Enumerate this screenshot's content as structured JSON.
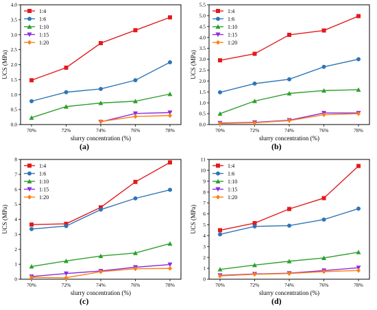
{
  "colors": {
    "1:4": "#e31a1c",
    "1:6": "#2e75b6",
    "1:10": "#2ca02c",
    "1:15": "#8b2be2",
    "1:20": "#ff7f0e"
  },
  "markers": {
    "1:4": "square",
    "1:6": "circle",
    "1:10": "triangle-up",
    "1:15": "triangle-down",
    "1:20": "diamond"
  },
  "chart_data": [
    {
      "panel_label": "(a)",
      "type": "line",
      "xlabel": "slurry concentration (%)",
      "ylabel": "UCS (MPa)",
      "categories": [
        "70%",
        "72%",
        "74%",
        "76%",
        "78%"
      ],
      "ylim": [
        0,
        4.0
      ],
      "yticks": [
        "0.0",
        "0.5",
        "1.0",
        "1.5",
        "2.0",
        "2.5",
        "3.0",
        "3.5",
        "4.0"
      ],
      "legend_position": "top-left",
      "series": [
        {
          "name": "1:4",
          "values": [
            1.48,
            1.9,
            2.72,
            3.15,
            3.58
          ]
        },
        {
          "name": "1:6",
          "values": [
            0.78,
            1.08,
            1.19,
            1.48,
            2.08
          ]
        },
        {
          "name": "1:10",
          "values": [
            0.23,
            0.6,
            0.72,
            0.78,
            1.02
          ]
        },
        {
          "name": "1:15",
          "values": [
            null,
            null,
            0.09,
            0.37,
            0.4
          ]
        },
        {
          "name": "1:20",
          "values": [
            null,
            null,
            0.1,
            0.27,
            0.3
          ]
        }
      ]
    },
    {
      "panel_label": "(b)",
      "type": "line",
      "xlabel": "slurry concentration (%)",
      "ylabel": "UCS (MPa)",
      "categories": [
        "70%",
        "72%",
        "74%",
        "76%",
        "78%"
      ],
      "ylim": [
        0,
        5.5
      ],
      "yticks": [
        "0.0",
        "0.5",
        "1.0",
        "1.5",
        "2.0",
        "2.5",
        "3.0",
        "3.5",
        "4.0",
        "4.5",
        "5.0",
        "5.5"
      ],
      "legend_position": "top-left",
      "series": [
        {
          "name": "1:4",
          "values": [
            2.95,
            3.25,
            4.12,
            4.32,
            4.98
          ]
        },
        {
          "name": "1:6",
          "values": [
            1.48,
            1.88,
            2.08,
            2.65,
            3.0
          ]
        },
        {
          "name": "1:10",
          "values": [
            0.5,
            1.08,
            1.43,
            1.56,
            1.6
          ]
        },
        {
          "name": "1:15",
          "values": [
            0.07,
            0.1,
            0.2,
            0.53,
            0.53
          ]
        },
        {
          "name": "1:20",
          "values": [
            0.05,
            0.08,
            0.18,
            0.45,
            0.5
          ]
        }
      ]
    },
    {
      "panel_label": "(c)",
      "type": "line",
      "xlabel": "slurry concentration (%)",
      "ylabel": "UCS (MPa)",
      "categories": [
        "70%",
        "72%",
        "74%",
        "76%",
        "78%"
      ],
      "ylim": [
        0,
        8
      ],
      "yticks": [
        "0",
        "1",
        "2",
        "3",
        "4",
        "5",
        "6",
        "7",
        "8"
      ],
      "legend_position": "top-left",
      "series": [
        {
          "name": "1:4",
          "values": [
            3.65,
            3.7,
            4.8,
            6.5,
            7.8
          ]
        },
        {
          "name": "1:6",
          "values": [
            3.35,
            3.55,
            4.65,
            5.4,
            5.97
          ]
        },
        {
          "name": "1:10",
          "values": [
            0.85,
            1.22,
            1.55,
            1.75,
            2.38
          ]
        },
        {
          "name": "1:15",
          "values": [
            0.18,
            0.38,
            0.55,
            0.8,
            0.98
          ]
        },
        {
          "name": "1:20",
          "values": [
            0.12,
            0.1,
            0.5,
            0.7,
            0.72
          ]
        }
      ]
    },
    {
      "panel_label": "(d)",
      "type": "line",
      "xlabel": "slurry concentration (%)",
      "ylabel": "UCS (MPa)",
      "categories": [
        "70%",
        "72%",
        "74%",
        "76%",
        "78%"
      ],
      "ylim": [
        0,
        11
      ],
      "yticks": [
        "0",
        "1",
        "2",
        "3",
        "4",
        "5",
        "6",
        "7",
        "8",
        "9",
        "10",
        "11"
      ],
      "legend_position": "top-left",
      "series": [
        {
          "name": "1:4",
          "values": [
            4.5,
            5.15,
            6.45,
            7.45,
            10.4
          ]
        },
        {
          "name": "1:6",
          "values": [
            4.12,
            4.85,
            4.92,
            5.48,
            6.48
          ]
        },
        {
          "name": "1:10",
          "values": [
            0.9,
            1.3,
            1.65,
            1.95,
            2.48
          ]
        },
        {
          "name": "1:15",
          "values": [
            0.35,
            0.48,
            0.55,
            0.8,
            1.05
          ]
        },
        {
          "name": "1:20",
          "values": [
            0.3,
            0.45,
            0.52,
            0.7,
            0.8
          ]
        }
      ]
    }
  ]
}
